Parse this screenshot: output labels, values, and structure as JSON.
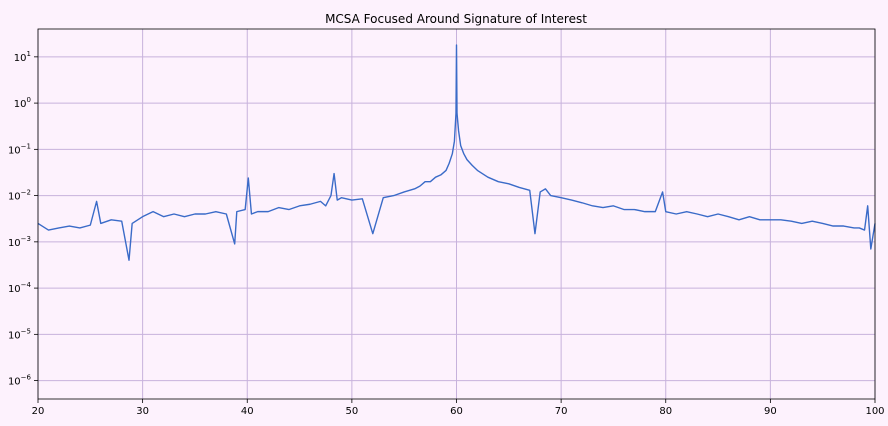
{
  "chart_data": {
    "type": "line",
    "title": "MCSA Focused Around Signature of Interest",
    "xlabel": "",
    "ylabel": "",
    "xlim": [
      20,
      100
    ],
    "ylim": [
      4e-07,
      40
    ],
    "yscale": "log",
    "grid": true,
    "legend": "none",
    "x_ticks": [
      {
        "value": 20,
        "label": "20"
      },
      {
        "value": 30,
        "label": "30"
      },
      {
        "value": 40,
        "label": "40"
      },
      {
        "value": 50,
        "label": "50"
      },
      {
        "value": 60,
        "label": "60"
      },
      {
        "value": 70,
        "label": "70"
      },
      {
        "value": 80,
        "label": "80"
      },
      {
        "value": 90,
        "label": "90"
      },
      {
        "value": 100,
        "label": "100"
      }
    ],
    "y_ticks": [
      {
        "value": 10,
        "base": "10",
        "exp": "1"
      },
      {
        "value": 1,
        "base": "10",
        "exp": "0"
      },
      {
        "value": 0.1,
        "base": "10",
        "exp": "−1"
      },
      {
        "value": 0.01,
        "base": "10",
        "exp": "−2"
      },
      {
        "value": 0.001,
        "base": "10",
        "exp": "−3"
      },
      {
        "value": 0.0001,
        "base": "10",
        "exp": "−4"
      },
      {
        "value": 1e-05,
        "base": "10",
        "exp": "−5"
      },
      {
        "value": 1e-06,
        "base": "10",
        "exp": "−6"
      }
    ],
    "series": [
      {
        "color": "#3a6bc8",
        "x": [
          20,
          21,
          22,
          23,
          24,
          25,
          25.6,
          26,
          27,
          28,
          28.7,
          29,
          30,
          31,
          32,
          33,
          34,
          35,
          36,
          37,
          38,
          38.8,
          39,
          39.8,
          40.1,
          40.4,
          41,
          42,
          43,
          44,
          45,
          46,
          47,
          47.5,
          48,
          48.3,
          48.6,
          49,
          50,
          51,
          52,
          53,
          54,
          55,
          56,
          56.5,
          57,
          57.5,
          58,
          58.5,
          59,
          59.3,
          59.6,
          59.8,
          59.95,
          60,
          60.05,
          60.2,
          60.4,
          60.7,
          61,
          61.5,
          62,
          63,
          64,
          65,
          66,
          67,
          67.5,
          68,
          68.5,
          69,
          70,
          71,
          72,
          73,
          74,
          75,
          76,
          77,
          78,
          79,
          79.7,
          80,
          81,
          82,
          83,
          84,
          85,
          86,
          87,
          88,
          89,
          90,
          91,
          92,
          93,
          94,
          95,
          96,
          97,
          98,
          98.5,
          99,
          99.3,
          99.6,
          100
        ],
        "y": [
          0.0025,
          0.0018,
          0.002,
          0.0022,
          0.002,
          0.0023,
          0.0075,
          0.0025,
          0.003,
          0.0028,
          0.0004,
          0.0025,
          0.0035,
          0.0045,
          0.0035,
          0.004,
          0.0035,
          0.004,
          0.004,
          0.0045,
          0.004,
          0.0009,
          0.0045,
          0.005,
          0.024,
          0.004,
          0.0045,
          0.0045,
          0.0055,
          0.005,
          0.006,
          0.0065,
          0.0075,
          0.006,
          0.01,
          0.03,
          0.008,
          0.009,
          0.008,
          0.0085,
          0.0015,
          0.009,
          0.01,
          0.012,
          0.014,
          0.016,
          0.02,
          0.02,
          0.025,
          0.028,
          0.035,
          0.05,
          0.08,
          0.15,
          0.6,
          18,
          0.6,
          0.25,
          0.12,
          0.08,
          0.06,
          0.045,
          0.035,
          0.025,
          0.02,
          0.018,
          0.015,
          0.013,
          0.0015,
          0.012,
          0.014,
          0.01,
          0.009,
          0.008,
          0.007,
          0.006,
          0.0055,
          0.006,
          0.005,
          0.005,
          0.0045,
          0.0045,
          0.012,
          0.0045,
          0.004,
          0.0045,
          0.004,
          0.0035,
          0.004,
          0.0035,
          0.003,
          0.0035,
          0.003,
          0.003,
          0.003,
          0.0028,
          0.0025,
          0.0028,
          0.0025,
          0.0022,
          0.0022,
          0.002,
          0.002,
          0.0018,
          0.006,
          0.0007,
          0.0025
        ]
      }
    ]
  }
}
